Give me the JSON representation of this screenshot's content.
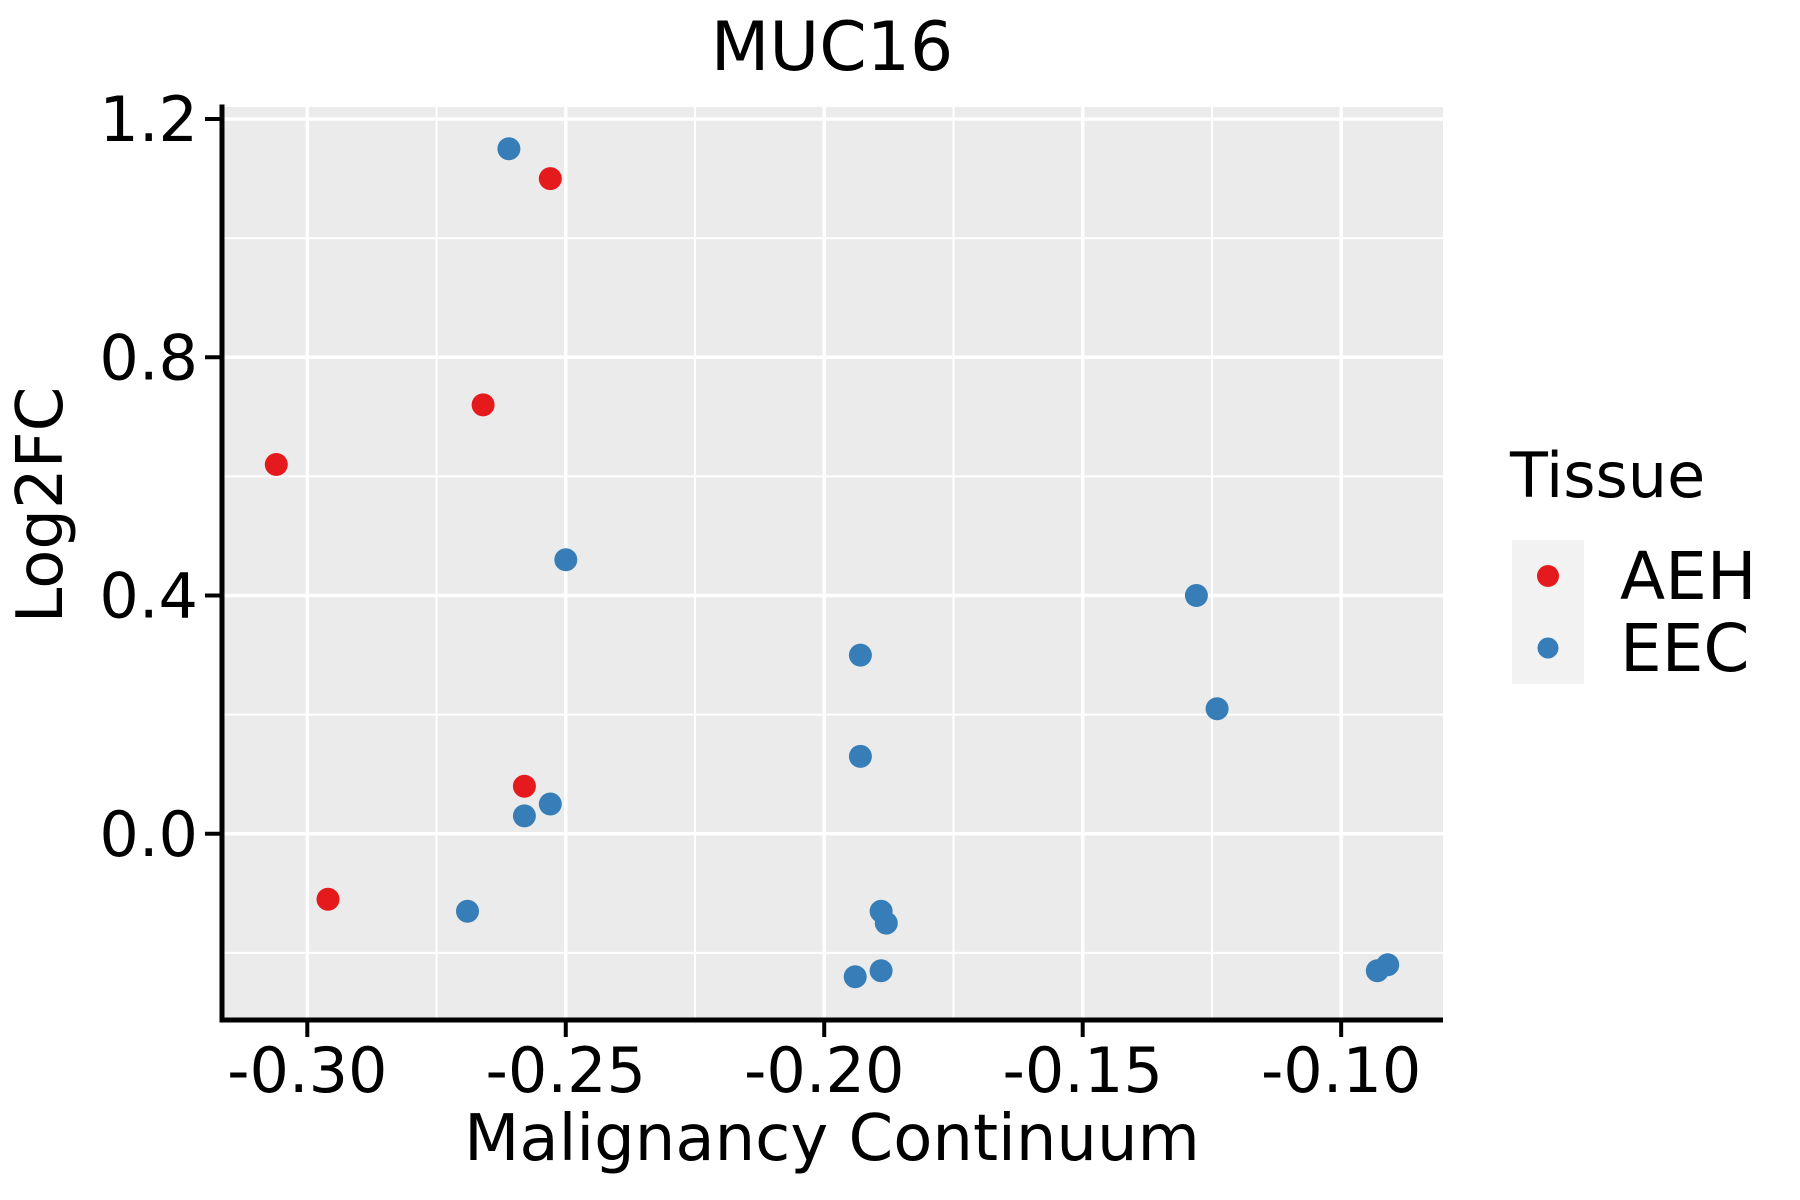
{
  "figure": {
    "background_color": "#FFFFFF",
    "panel_color": "#EBEBEB",
    "gridline_color": "#FFFFFF",
    "axis_line_color": "#000000",
    "legend_key_color": "#F2F2F2"
  },
  "chart_data": {
    "type": "scatter",
    "title": "MUC16",
    "xlabel": "Malignancy Continuum",
    "ylabel": "Log2FC",
    "xlim": [
      -0.3165,
      -0.0803
    ],
    "ylim": [
      -0.3126,
      1.2202
    ],
    "grid": "major and minor white gridlines on gray panel",
    "x_ticks": {
      "values": [
        -0.3,
        -0.25,
        -0.2,
        -0.15,
        -0.1
      ],
      "labels": [
        "-0.30",
        "-0.25",
        "-0.20",
        "-0.15",
        "-0.10"
      ],
      "minor": [
        -0.275,
        -0.225,
        -0.175,
        -0.125
      ]
    },
    "y_ticks": {
      "values": [
        0.0,
        0.4,
        0.8,
        1.2
      ],
      "labels": [
        "0.0",
        "0.4",
        "0.8",
        "1.2"
      ],
      "minor": [
        -0.2,
        0.2,
        0.6,
        1.0
      ]
    },
    "legend": {
      "title": "Tissue",
      "position": "right-center",
      "entries": [
        {
          "label": "AEH",
          "color": "#E41A1C"
        },
        {
          "label": "EEC",
          "color": "#377EB8"
        }
      ]
    },
    "point_radius_px": 11.5,
    "series": [
      {
        "name": "AEH",
        "color": "#E41A1C",
        "points": [
          [
            -0.306,
            0.62
          ],
          [
            -0.296,
            -0.11
          ],
          [
            -0.266,
            0.72
          ],
          [
            -0.258,
            0.08
          ],
          [
            -0.253,
            1.1
          ]
        ]
      },
      {
        "name": "EEC",
        "color": "#377EB8",
        "points": [
          [
            -0.261,
            1.15
          ],
          [
            -0.269,
            -0.13
          ],
          [
            -0.258,
            0.03
          ],
          [
            -0.253,
            0.05
          ],
          [
            -0.25,
            0.46
          ],
          [
            -0.194,
            -0.24
          ],
          [
            -0.193,
            0.3
          ],
          [
            -0.193,
            0.13
          ],
          [
            -0.189,
            -0.13
          ],
          [
            -0.188,
            -0.15
          ],
          [
            -0.189,
            -0.23
          ],
          [
            -0.128,
            0.4
          ],
          [
            -0.124,
            0.21
          ],
          [
            -0.093,
            -0.23
          ],
          [
            -0.091,
            -0.22
          ]
        ]
      }
    ]
  }
}
